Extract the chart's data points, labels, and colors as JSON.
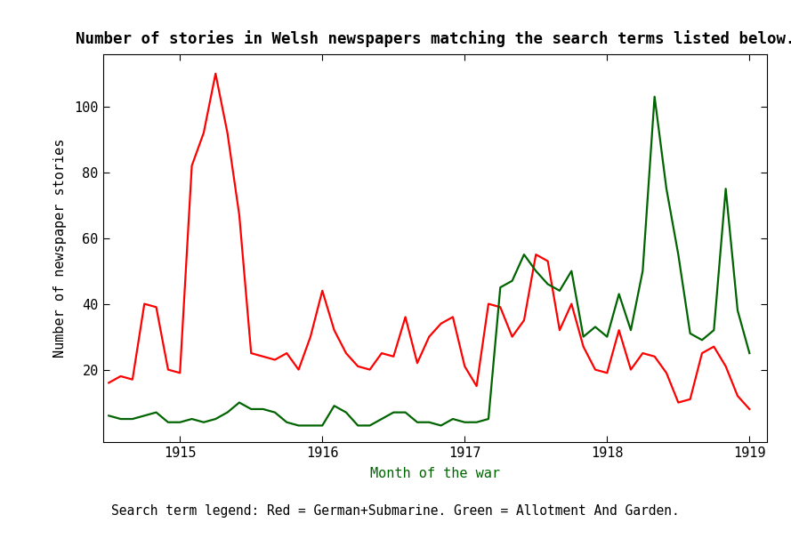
{
  "title": "Number of stories in Welsh newspapers matching the search terms listed below.",
  "xlabel": "Month of the war",
  "ylabel": "Number of newspaper stories",
  "legend_text": "Search term legend: Red = German+Submarine. Green = Allotment And Garden.",
  "title_fontsize": 12.5,
  "label_fontsize": 11,
  "tick_fontsize": 11,
  "legend_fontsize": 10.5,
  "line_color_red": "#ff0000",
  "line_color_green": "#006400",
  "background_color": "#ffffff",
  "x_tick_positions": [
    6,
    18,
    30,
    42,
    54
  ],
  "x_tick_labels": [
    "1915",
    "1916",
    "1917",
    "1918",
    "1919"
  ],
  "ylim": [
    -2,
    116
  ],
  "y_ticks": [
    20,
    40,
    60,
    80,
    100
  ],
  "xlim": [
    -0.5,
    55.5
  ],
  "red_values": [
    16,
    18,
    17,
    40,
    39,
    20,
    19,
    82,
    92,
    110,
    92,
    67,
    25,
    24,
    23,
    25,
    20,
    30,
    44,
    32,
    25,
    21,
    20,
    25,
    24,
    36,
    22,
    30,
    34,
    36,
    21,
    15,
    40,
    39,
    30,
    35,
    55,
    53,
    32,
    40,
    27,
    20,
    19,
    32,
    20,
    25,
    24,
    19,
    10,
    11,
    25,
    27,
    21,
    12,
    8
  ],
  "green_values": [
    6,
    5,
    5,
    6,
    7,
    4,
    4,
    5,
    4,
    5,
    7,
    10,
    8,
    8,
    7,
    4,
    3,
    3,
    3,
    9,
    7,
    3,
    3,
    5,
    7,
    7,
    4,
    4,
    3,
    5,
    4,
    4,
    5,
    45,
    47,
    55,
    50,
    46,
    44,
    50,
    30,
    33,
    30,
    43,
    32,
    50,
    103,
    75,
    55,
    31,
    29,
    32,
    75,
    38,
    25
  ]
}
